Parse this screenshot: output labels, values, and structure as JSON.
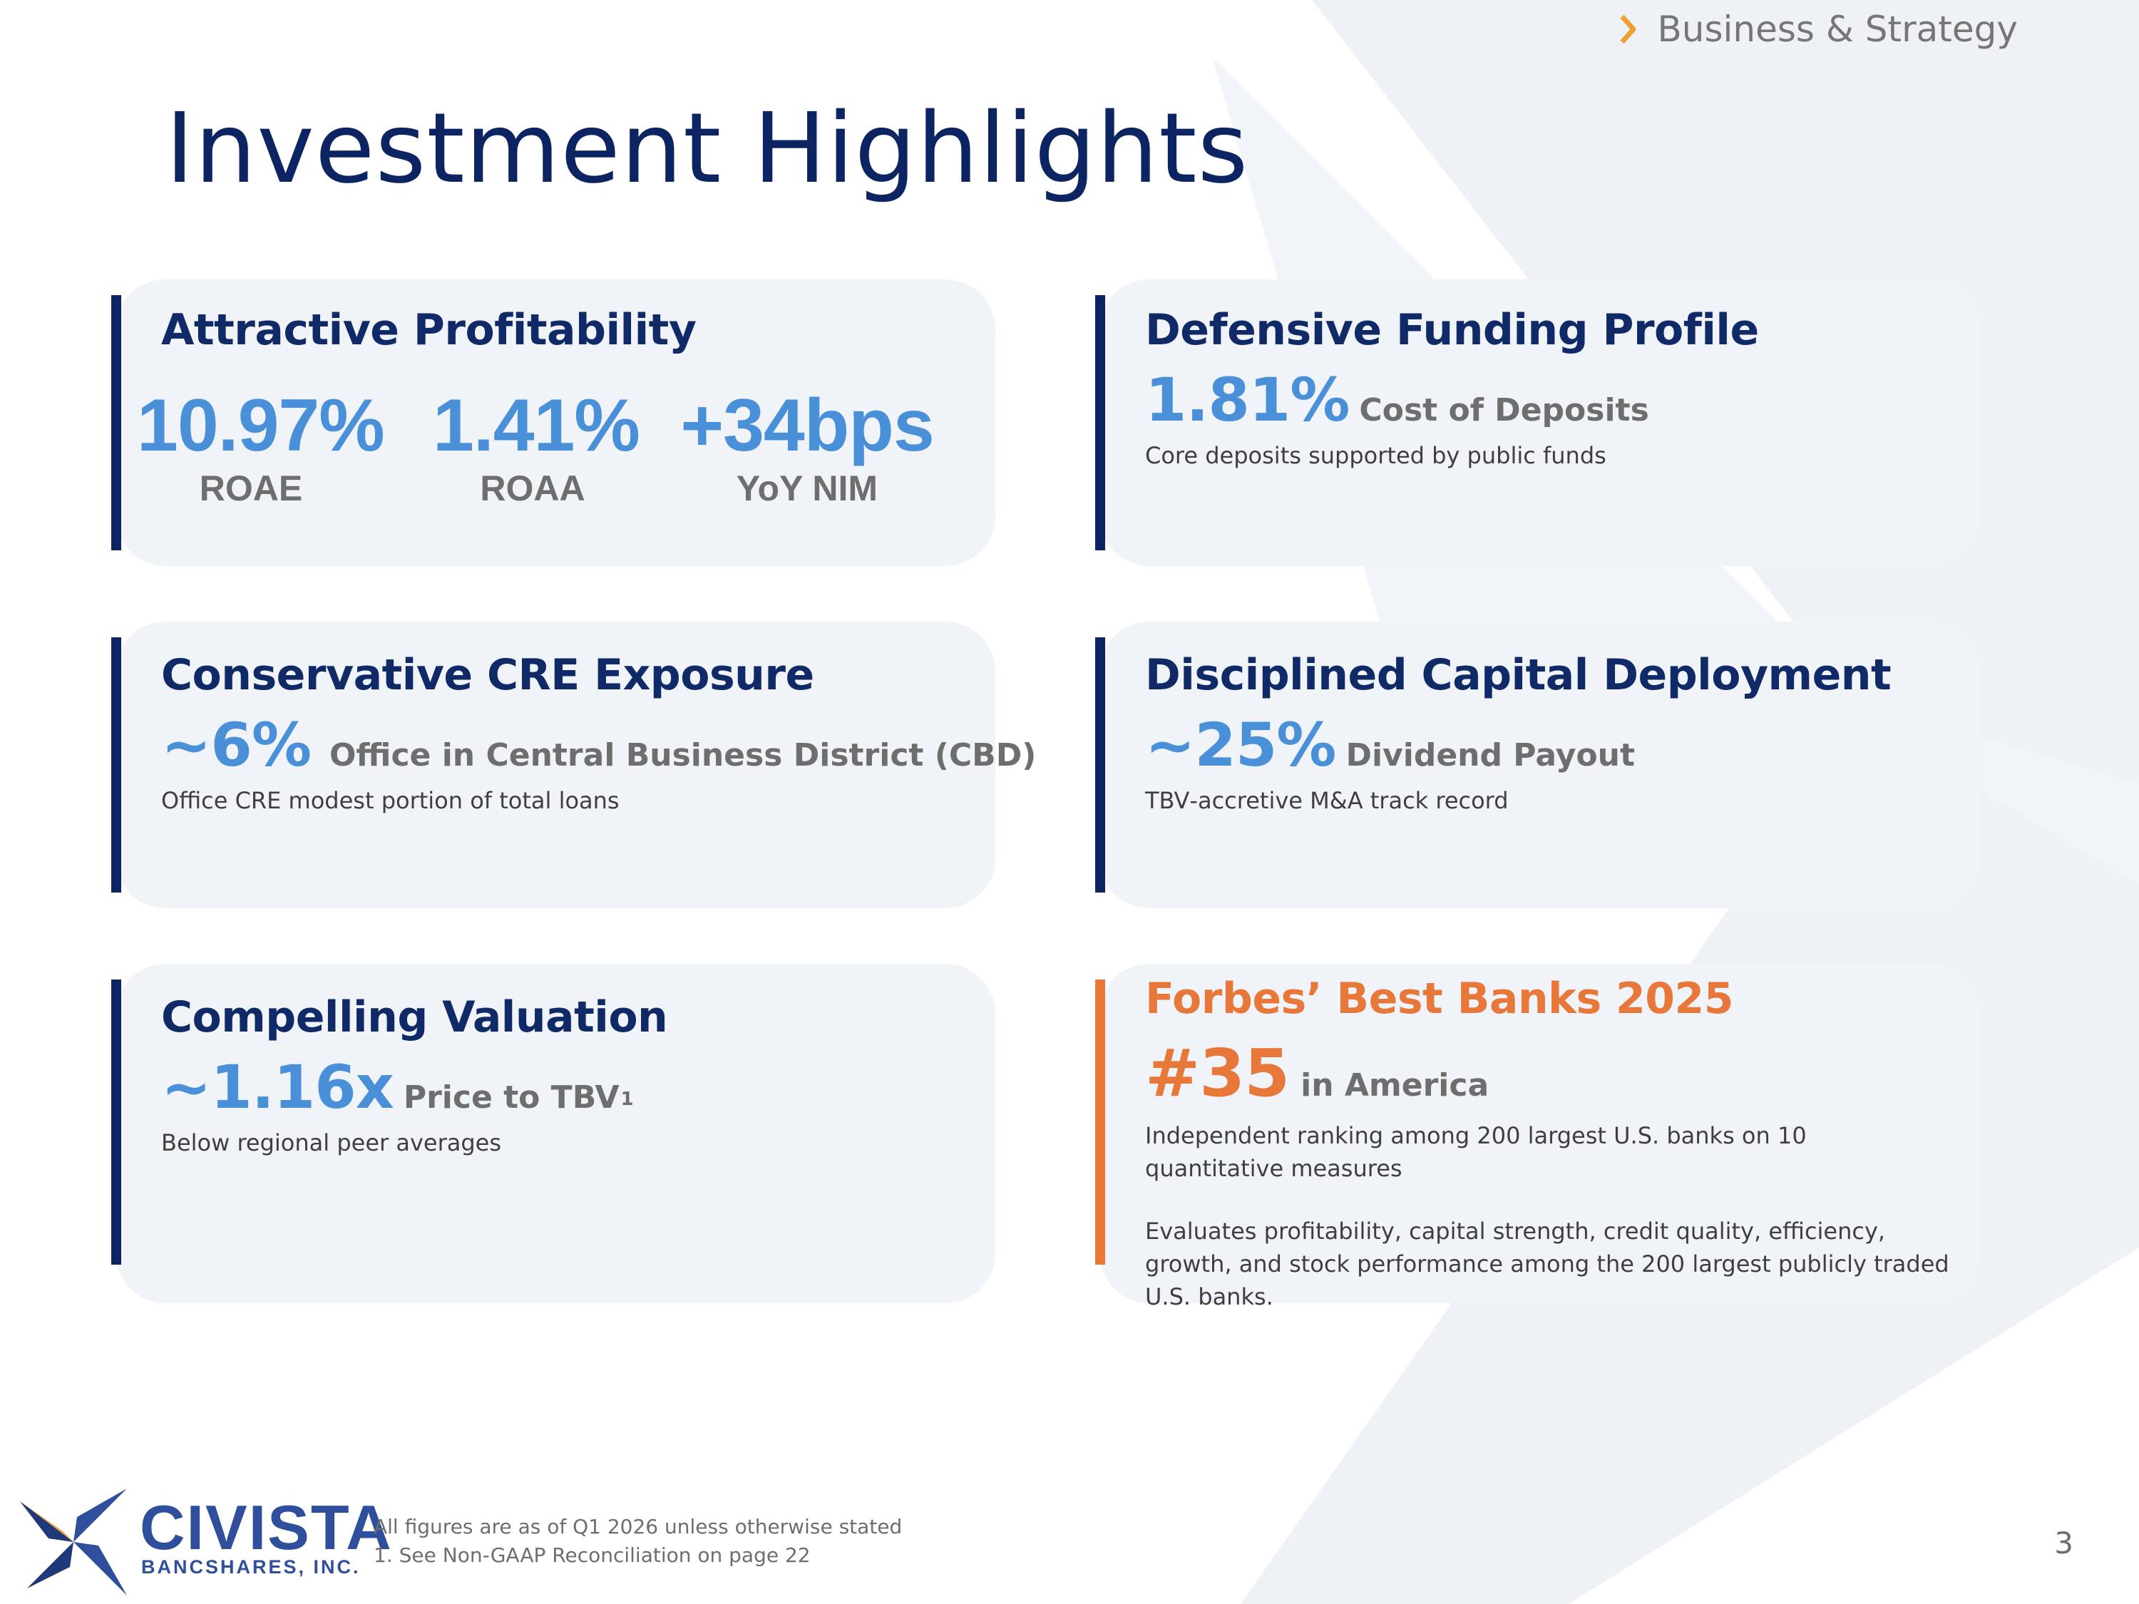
{
  "header": {
    "section": "Business & Strategy",
    "chevron_icon": "chevron-right-icon"
  },
  "title": "Investment Highlights",
  "colors": {
    "navy": "#0c2461",
    "blue": "#4a90d9",
    "orange": "#e8773a",
    "card_bg": "#f0f3f7"
  },
  "cards": {
    "profitability": {
      "title": "Attractive Profitability",
      "stats": [
        {
          "value": "10.97%",
          "label": "ROAE"
        },
        {
          "value": "1.41%",
          "label": "ROAA"
        },
        {
          "value": "+34bps",
          "label": "YoY NIM"
        }
      ]
    },
    "funding": {
      "title": "Defensive Funding Profile",
      "metric": "1.81%",
      "metric_label": "Cost of Deposits",
      "description": "Core deposits supported by public funds"
    },
    "cre": {
      "title": "Conservative CRE Exposure",
      "metric": "~6%",
      "metric_label": "Office in Central Business District (CBD)",
      "description": "Office CRE modest portion of total loans"
    },
    "capital": {
      "title": "Disciplined Capital Deployment",
      "metric": "~25%",
      "metric_label": "Dividend Payout",
      "description": "TBV‐accretive M&A track record"
    },
    "valuation": {
      "title": "Compelling Valuation",
      "metric": "~1.16x",
      "metric_label": "Price to TBV",
      "footnote_mark": "1",
      "description": "Below regional peer averages"
    },
    "forbes": {
      "title": "Forbes’ Best Banks 2025",
      "metric": "#35",
      "metric_label": "in America",
      "description_1": "Independent ranking among 200 largest U.S. banks on 10 quantitative measures",
      "description_2": "Evaluates profitability, capital strength, credit quality, efficiency, growth, and stock performance among the 200 largest publicly traded U.S. banks."
    }
  },
  "footer": {
    "logo_name": "CIVISTA",
    "logo_sub": "BANCSHARES, INC.",
    "note_1": "All figures are as of Q1 2026 unless otherwise stated",
    "note_2": "1. See Non-GAAP Reconciliation on page 22",
    "page_number": "3"
  }
}
